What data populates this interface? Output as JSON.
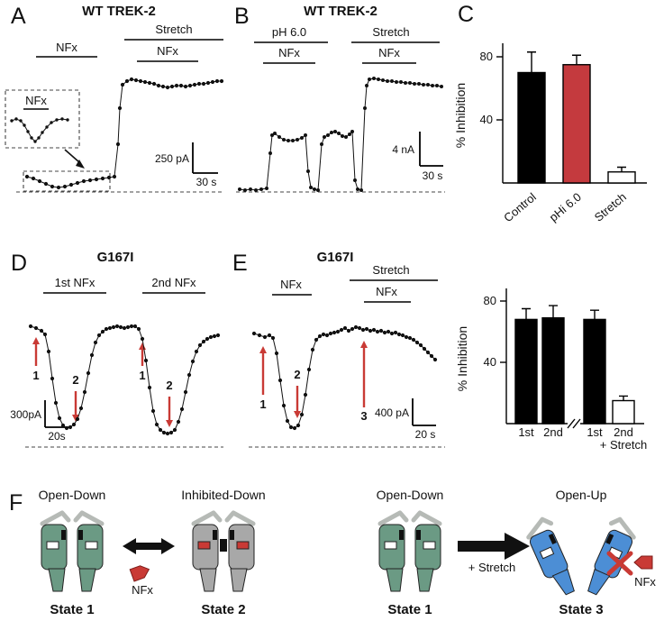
{
  "colors": {
    "red": "#c93a35",
    "teal": "#6b9a84",
    "gray": "#a8a8a8",
    "blue": "#4c8ed5"
  },
  "panels": {
    "A": {
      "letter": "A",
      "title": "WT TREK-2",
      "nfx_top": "NFx",
      "stretch": "Stretch",
      "nfx_under": "NFx",
      "inset_nfx": "NFx",
      "scale_y": "250 pA",
      "scale_x": "30 s"
    },
    "B": {
      "letter": "B",
      "title": "WT TREK-2",
      "ph": "pH 6.0",
      "nfx1": "NFx",
      "stretch": "Stretch",
      "nfx2": "NFx",
      "scale_y": "4 nA",
      "scale_x": "30 s"
    },
    "C": {
      "letter": "C"
    },
    "D": {
      "letter": "D",
      "title": "G167I",
      "nfx1": "1st NFx",
      "nfx2": "2nd NFx",
      "n1": "1",
      "n2": "2",
      "scale_y": "300pA",
      "scale_x": "20s"
    },
    "E": {
      "letter": "E",
      "title": "G167I",
      "nfx1": "NFx",
      "stretch": "Stretch",
      "nfx2": "NFx",
      "n1": "1",
      "n2": "2",
      "n3": "3",
      "scale_y": "400 pA",
      "scale_x": "20 s"
    },
    "E2": {
      "cats": [
        "1st",
        "2nd",
        "1st",
        "2nd"
      ],
      "cat_extra": "+ Stretch"
    },
    "F": {
      "letter": "F",
      "titles": [
        "Open-Down",
        "Inhibited-Down",
        "Open-Down",
        "Open-Up"
      ],
      "states": [
        "State 1",
        "State 2",
        "State 1",
        "State 3"
      ],
      "nfx_left": "NFx",
      "plus_stretch": "+ Stretch",
      "nfx_right": "NFx"
    }
  },
  "chart_data": [
    {
      "id": "panelA_trace",
      "type": "scatter",
      "panel": "A",
      "title": "WT TREK-2",
      "description": "Whole-cell current time course: NFx slightly inhibits baseline current; membrane stretch strongly activates current that is then resistant to NFx.",
      "annotations": [
        "NFx",
        "Stretch",
        "NFx"
      ],
      "inset": {
        "label": "NFx",
        "description": "zoom of the NFx-inhibited baseline segment"
      },
      "scale_bar": {
        "y": "250 pA",
        "x": "30 s"
      }
    },
    {
      "id": "panelB_trace",
      "type": "scatter",
      "panel": "B",
      "title": "WT TREK-2",
      "description": "Current activated by intracellular pH 6.0 is reversibly inhibited by NFx (two square steps); stretch-activated current is not inhibited by NFx.",
      "annotations": [
        "pH 6.0",
        "NFx",
        "Stretch",
        "NFx"
      ],
      "scale_bar": {
        "y": "4 nA",
        "x": "30 s"
      }
    },
    {
      "id": "panelC_bars",
      "type": "bar",
      "ylabel": "% Inhibition",
      "yticks": [
        40,
        80
      ],
      "ylim": [
        0,
        95
      ],
      "categories": [
        "Control",
        "pHi 6.0",
        "Stretch"
      ],
      "values": [
        70,
        75,
        7
      ],
      "errors": [
        13,
        6,
        3
      ],
      "colors": [
        "#000000",
        "#c43a3e",
        "#ffffff"
      ]
    },
    {
      "id": "panelD_trace",
      "type": "scatter",
      "panel": "D",
      "title": "G167I",
      "description": "Two successive NFx applications (1st NFx, 2nd NFx) reversibly inhibit G167I current; red arrows mark levels before (1) and during (2) inhibition.",
      "annotations": [
        "1st NFx",
        "2nd NFx",
        "1",
        "2",
        "1",
        "2"
      ],
      "scale_bar": {
        "y": "300pA",
        "x": "20s"
      }
    },
    {
      "id": "panelE_trace",
      "type": "scatter",
      "panel": "E",
      "title": "G167I",
      "description": "NFx inhibits G167I current (1 to 2); during stretch, NFx no longer inhibits the current (3).",
      "annotations": [
        "NFx",
        "Stretch",
        "NFx",
        "1",
        "2",
        "3"
      ],
      "scale_bar": {
        "y": "400 pA",
        "x": "20 s"
      }
    },
    {
      "id": "panelE_bars",
      "type": "bar",
      "ylabel": "% Inhibition",
      "yticks": [
        40,
        80
      ],
      "ylim": [
        0,
        85
      ],
      "categories": [
        "1st",
        "2nd",
        "1st",
        "2nd + Stretch"
      ],
      "values": [
        68,
        69,
        68,
        15
      ],
      "errors": [
        7,
        8,
        6,
        3
      ],
      "colors": [
        "#000000",
        "#000000",
        "#000000",
        "#ffffff"
      ],
      "axis_break_after": 1
    }
  ]
}
